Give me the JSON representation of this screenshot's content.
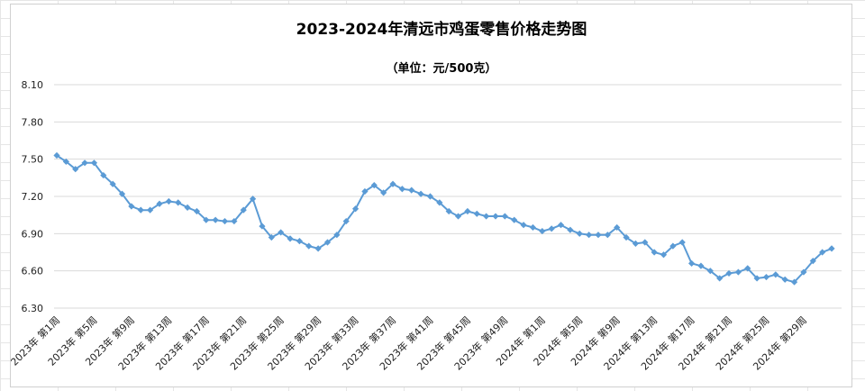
{
  "chart_data": {
    "type": "line",
    "title": "2023-2024年清远市鸡蛋零售价格走势图",
    "subtitle": "（单位：元/500克）",
    "xlabel": "",
    "ylabel": "",
    "ylim": [
      6.3,
      8.1
    ],
    "yticks": [
      "6.30",
      "6.60",
      "6.90",
      "7.20",
      "7.50",
      "7.80",
      "8.10"
    ],
    "grid": true,
    "legend": "none",
    "line_color": "#5b9bd5",
    "categories": [
      "2023年 第1周",
      "2023年 第2周",
      "2023年 第3周",
      "2023年 第4周",
      "2023年 第5周",
      "2023年 第6周",
      "2023年 第7周",
      "2023年 第8周",
      "2023年 第9周",
      "2023年 第10周",
      "2023年 第11周",
      "2023年 第12周",
      "2023年 第13周",
      "2023年 第14周",
      "2023年 第15周",
      "2023年 第16周",
      "2023年 第17周",
      "2023年 第18周",
      "2023年 第19周",
      "2023年 第20周",
      "2023年 第21周",
      "2023年 第22周",
      "2023年 第23周",
      "2023年 第24周",
      "2023年 第25周",
      "2023年 第26周",
      "2023年 第27周",
      "2023年 第28周",
      "2023年 第29周",
      "2023年 第30周",
      "2023年 第31周",
      "2023年 第32周",
      "2023年 第33周",
      "2023年 第34周",
      "2023年 第35周",
      "2023年 第36周",
      "2023年 第37周",
      "2023年 第38周",
      "2023年 第39周",
      "2023年 第40周",
      "2023年 第41周",
      "2023年 第42周",
      "2023年 第43周",
      "2023年 第44周",
      "2023年 第45周",
      "2023年 第46周",
      "2023年 第47周",
      "2023年 第48周",
      "2023年 第49周",
      "2023年 第50周",
      "2023年 第51周",
      "2023年 第52周",
      "2024年 第1周",
      "2024年 第2周",
      "2024年 第3周",
      "2024年 第4周",
      "2024年 第5周",
      "2024年 第6周",
      "2024年 第7周",
      "2024年 第8周",
      "2024年 第9周",
      "2024年 第10周",
      "2024年 第11周",
      "2024年 第12周",
      "2024年 第13周",
      "2024年 第14周",
      "2024年 第15周",
      "2024年 第16周",
      "2024年 第17周",
      "2024年 第18周",
      "2024年 第19周",
      "2024年 第20周",
      "2024年 第21周",
      "2024年 第22周",
      "2024年 第23周",
      "2024年 第24周",
      "2024年 第25周",
      "2024年 第26周",
      "2024年 第27周",
      "2024年 第28周",
      "2024年 第29周",
      "2024年 第30周",
      "2024年 第31周",
      "2024年 第32周"
    ],
    "x_tick_labels": [
      "2023年 第1周",
      "2023年 第5周",
      "2023年 第9周",
      "2023年 第13周",
      "2023年 第17周",
      "2023年 第21周",
      "2023年 第25周",
      "2023年 第29周",
      "2023年 第33周",
      "2023年 第37周",
      "2023年 第41周",
      "2023年 第45周",
      "2023年 第49周",
      "2024年 第1周",
      "2024年 第5周",
      "2024年 第9周",
      "2024年 第13周",
      "2024年 第17周",
      "2024年 第21周",
      "2024年 第25周",
      "2024年 第29周"
    ],
    "series": [
      {
        "values": [
          7.53,
          7.48,
          7.42,
          7.47,
          7.47,
          7.37,
          7.3,
          7.22,
          7.12,
          7.09,
          7.09,
          7.14,
          7.16,
          7.15,
          7.11,
          7.08,
          7.01,
          7.01,
          7.0,
          7.0,
          7.09,
          7.18,
          6.96,
          6.87,
          6.91,
          6.86,
          6.84,
          6.8,
          6.78,
          6.83,
          6.89,
          7.0,
          7.1,
          7.24,
          7.29,
          7.23,
          7.3,
          7.26,
          7.25,
          7.22,
          7.2,
          7.15,
          7.08,
          7.04,
          7.08,
          7.06,
          7.04,
          7.04,
          7.04,
          7.01,
          6.97,
          6.95,
          6.92,
          6.94,
          6.97,
          6.93,
          6.9,
          6.89,
          6.89,
          6.89,
          6.95,
          6.87,
          6.82,
          6.83,
          6.75,
          6.73,
          6.8,
          6.83,
          6.66,
          6.64,
          6.6,
          6.54,
          6.58,
          6.59,
          6.62,
          6.54,
          6.55,
          6.57,
          6.53,
          6.51,
          6.59,
          6.68,
          6.75,
          6.78
        ]
      }
    ]
  }
}
